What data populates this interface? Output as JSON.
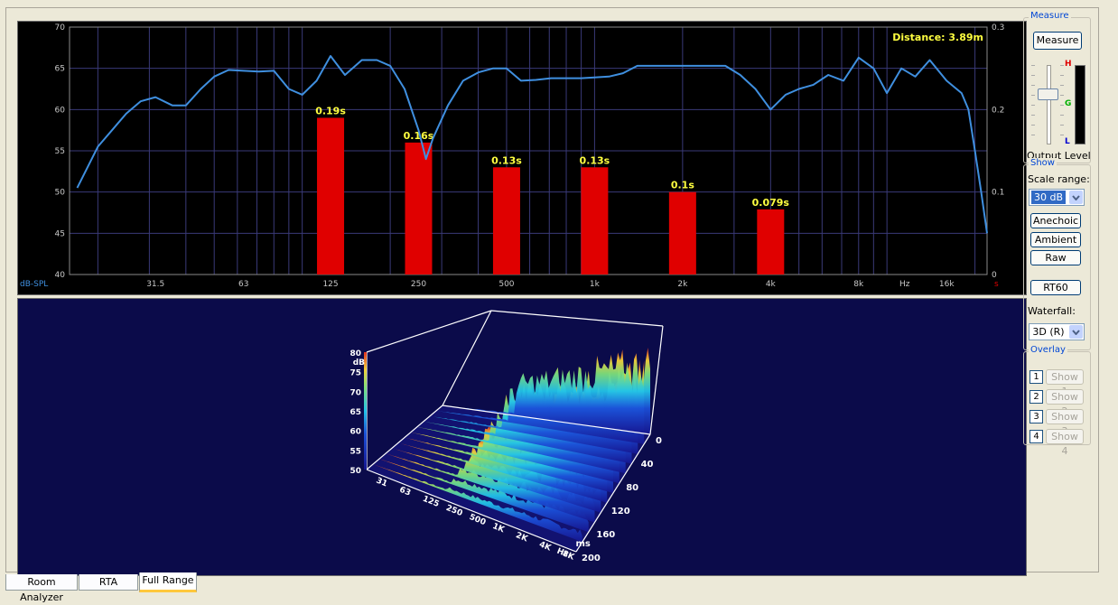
{
  "measure_group": {
    "title": "Measure",
    "measure_button": "Measure",
    "output_level_label": "Output Level",
    "meter_labels": {
      "high": "H",
      "good": "G",
      "low": "L"
    }
  },
  "show_group": {
    "title": "Show",
    "scale_range_label": "Scale range:",
    "scale_range_value": "30 dB",
    "anechoic_button": "Anechoic",
    "ambient_button": "Ambient",
    "raw_button": "Raw",
    "rt60_button": "RT60",
    "waterfall_label": "Waterfall:",
    "waterfall_value": "3D (R)"
  },
  "overlay_group": {
    "title": "Overlay",
    "items": [
      {
        "num": "1",
        "label": "Show 1"
      },
      {
        "num": "2",
        "label": "Show 2"
      },
      {
        "num": "3",
        "label": "Show 3"
      },
      {
        "num": "4",
        "label": "Show 4"
      }
    ]
  },
  "tabs": [
    {
      "label": "Room Analyzer",
      "active": false
    },
    {
      "label": "RTA",
      "active": false
    },
    {
      "label": "Full Range",
      "active": true
    }
  ],
  "colors": {
    "curve": "#3f8fdf",
    "bars": "#e00000",
    "bar_labels": "#ffff40",
    "axis_text": "#c8c8c8"
  },
  "chart_data": {
    "type": "bar",
    "annotation": "Distance: 3.89m",
    "ylabel_left": "dB-SPL",
    "ylabel_right": "s",
    "xunit": "Hz",
    "left_ticks": [
      "70",
      "65",
      "60",
      "55",
      "50",
      "45",
      "40"
    ],
    "right_ticks": [
      "0.3",
      "0.2",
      "0.1",
      "0"
    ],
    "ylim_left": [
      40,
      70
    ],
    "ylim_right": [
      0,
      0.3
    ],
    "x_ticks": [
      "31.5",
      "63",
      "125",
      "250",
      "500",
      "1k",
      "2k",
      "4k",
      "8k",
      "16k"
    ],
    "x_tick_hz": [
      31.5,
      63,
      125,
      250,
      500,
      1000,
      2000,
      4000,
      8000,
      16000
    ],
    "rt60_bars": [
      {
        "freq": 125,
        "value": 0.19,
        "label": "0.19s"
      },
      {
        "freq": 250,
        "value": 0.16,
        "label": "0.16s"
      },
      {
        "freq": 500,
        "value": 0.13,
        "label": "0.13s"
      },
      {
        "freq": 1000,
        "value": 0.13,
        "label": "0.13s"
      },
      {
        "freq": 2000,
        "value": 0.1,
        "label": "0.1s"
      },
      {
        "freq": 4000,
        "value": 0.079,
        "label": "0.079s"
      }
    ],
    "response_curve": {
      "x": [
        17,
        20,
        25,
        28,
        31.5,
        36,
        40,
        45,
        50,
        56,
        63,
        71,
        80,
        90,
        100,
        112,
        125,
        140,
        160,
        180,
        200,
        224,
        250,
        265,
        280,
        315,
        355,
        400,
        450,
        500,
        560,
        630,
        710,
        800,
        900,
        1000,
        1120,
        1250,
        1400,
        1600,
        1800,
        2000,
        2240,
        2500,
        2800,
        3150,
        3550,
        4000,
        4500,
        5000,
        5600,
        6300,
        7100,
        8000,
        9000,
        10000,
        11200,
        12500,
        14000,
        16000,
        18000,
        19000,
        20000,
        21000,
        22000
      ],
      "y": [
        50.5,
        55.5,
        59.5,
        61,
        61.5,
        60.5,
        60.5,
        62.5,
        64,
        64.8,
        64.7,
        64.6,
        64.7,
        62.5,
        61.8,
        63.5,
        66.5,
        64.2,
        66,
        66,
        65.3,
        62.5,
        57.5,
        54,
        56.5,
        60.5,
        63.5,
        64.5,
        65,
        65,
        63.5,
        63.6,
        63.8,
        63.8,
        63.8,
        63.9,
        64,
        64.4,
        65.3,
        65.3,
        65.3,
        65.3,
        65.3,
        65.3,
        65.3,
        64.2,
        62.5,
        60,
        61.8,
        62.5,
        63,
        64.2,
        63.5,
        66.3,
        65,
        62,
        65,
        64,
        66,
        63.5,
        62,
        60,
        55,
        50,
        45
      ]
    },
    "waterfall_3d": {
      "z_label": "dB",
      "z_ticks": [
        "80",
        "75",
        "70",
        "65",
        "60",
        "55",
        "50"
      ],
      "freq_ticks": [
        "31",
        "63",
        "125",
        "250",
        "500",
        "1K",
        "2K",
        "4K",
        "8K"
      ],
      "freq_unit": "Hz",
      "time_ticks": [
        "0",
        "40",
        "80",
        "120",
        "160",
        "200"
      ],
      "time_unit": "ms"
    }
  }
}
